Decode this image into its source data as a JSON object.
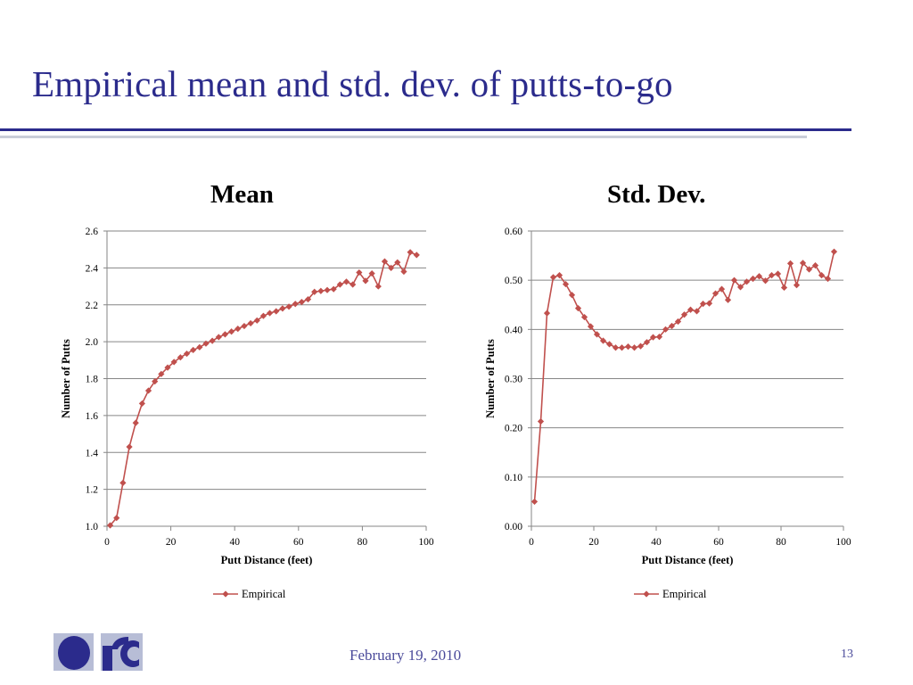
{
  "slide": {
    "title": "Empirical mean and std. dev. of putts-to-go",
    "footer_date": "February 19, 2010",
    "page_number": "13"
  },
  "colors": {
    "title": "#2b2b8c",
    "series": "#c0504d",
    "gridline": "#868686",
    "logo": "#2b2b8c"
  },
  "icons": {
    "logo": "organization-logo-icon",
    "legend_marker": "diamond-marker-icon"
  },
  "chart_data": [
    {
      "type": "line",
      "title": "Mean",
      "xlabel": "Putt Distance (feet)",
      "ylabel": "Number of Putts",
      "xlim": [
        0,
        100
      ],
      "ylim": [
        1.0,
        2.6
      ],
      "xticks": [
        0,
        20,
        40,
        60,
        80,
        100
      ],
      "yticks": [
        1.0,
        1.2,
        1.4,
        1.6,
        1.8,
        2.0,
        2.2,
        2.4,
        2.6
      ],
      "ytick_decimals": 1,
      "grid": true,
      "legend_position": "bottom",
      "series": [
        {
          "name": "Empirical",
          "marker": "diamond",
          "x": [
            1,
            3,
            5,
            7,
            9,
            11,
            13,
            15,
            17,
            19,
            21,
            23,
            25,
            27,
            29,
            31,
            33,
            35,
            37,
            39,
            41,
            43,
            45,
            47,
            49,
            51,
            53,
            55,
            57,
            59,
            61,
            63,
            65,
            67,
            69,
            71,
            73,
            75,
            77,
            79,
            81,
            83,
            85,
            87,
            89,
            91,
            93,
            95,
            97
          ],
          "values": [
            1.005,
            1.045,
            1.235,
            1.43,
            1.56,
            1.665,
            1.735,
            1.785,
            1.825,
            1.86,
            1.89,
            1.915,
            1.935,
            1.955,
            1.97,
            1.99,
            2.005,
            2.025,
            2.04,
            2.055,
            2.07,
            2.085,
            2.1,
            2.115,
            2.14,
            2.155,
            2.165,
            2.18,
            2.19,
            2.205,
            2.215,
            2.23,
            2.27,
            2.275,
            2.28,
            2.285,
            2.31,
            2.325,
            2.31,
            2.375,
            2.33,
            2.37,
            2.3,
            2.435,
            2.4,
            2.43,
            2.38,
            2.485,
            2.47
          ]
        }
      ]
    },
    {
      "type": "line",
      "title": "Std. Dev.",
      "xlabel": "Putt Distance (feet)",
      "ylabel": "Number of Putts",
      "xlim": [
        0,
        100
      ],
      "ylim": [
        0.0,
        0.6
      ],
      "xticks": [
        0,
        20,
        40,
        60,
        80,
        100
      ],
      "yticks": [
        0.0,
        0.1,
        0.2,
        0.3,
        0.4,
        0.5,
        0.6
      ],
      "ytick_decimals": 2,
      "grid": true,
      "legend_position": "bottom",
      "series": [
        {
          "name": "Empirical",
          "marker": "diamond",
          "x": [
            1,
            3,
            5,
            7,
            9,
            11,
            13,
            15,
            17,
            19,
            21,
            23,
            25,
            27,
            29,
            31,
            33,
            35,
            37,
            39,
            41,
            43,
            45,
            47,
            49,
            51,
            53,
            55,
            57,
            59,
            61,
            63,
            65,
            67,
            69,
            71,
            73,
            75,
            77,
            79,
            81,
            83,
            85,
            87,
            89,
            91,
            93,
            95,
            97
          ],
          "values": [
            0.05,
            0.213,
            0.433,
            0.506,
            0.51,
            0.492,
            0.47,
            0.443,
            0.425,
            0.406,
            0.39,
            0.377,
            0.37,
            0.363,
            0.363,
            0.365,
            0.363,
            0.366,
            0.374,
            0.384,
            0.385,
            0.4,
            0.407,
            0.416,
            0.43,
            0.44,
            0.437,
            0.452,
            0.453,
            0.473,
            0.482,
            0.46,
            0.5,
            0.486,
            0.497,
            0.503,
            0.508,
            0.499,
            0.51,
            0.513,
            0.485,
            0.534,
            0.49,
            0.535,
            0.522,
            0.53,
            0.51,
            0.503,
            0.558
          ]
        }
      ]
    }
  ]
}
